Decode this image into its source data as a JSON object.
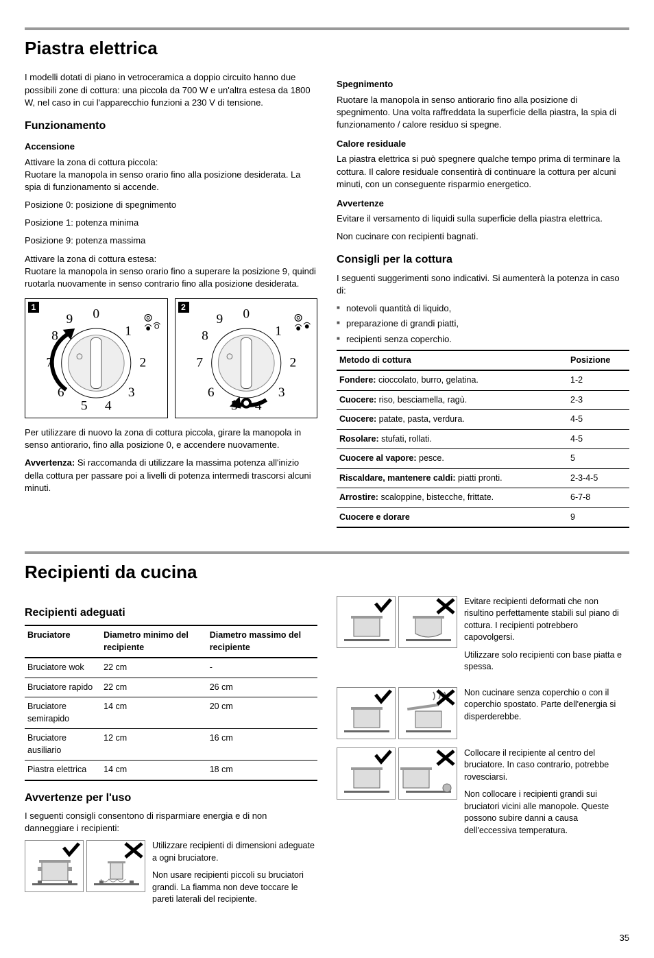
{
  "page_number": "35",
  "section1": {
    "title": "Piastra elettrica",
    "intro": "I modelli dotati di piano in vetroceramica a doppio circuito hanno due possibili zone di cottura: una piccola da 700 W e un'altra estesa da 1800 W, nel caso in cui l'apparecchio funzioni a 230 V di tensione.",
    "operation": {
      "heading": "Funzionamento",
      "turn_on_heading": "Accensione",
      "small_zone_label": "Attivare la zona di cottura piccola:",
      "small_zone_text": "Ruotare la manopola in senso orario fino alla posizione desiderata. La spia di funzionamento si accende.",
      "pos0": "Posizione 0: posizione di spegnimento",
      "pos1": "Posizione 1: potenza minima",
      "pos9": "Posizione 9: potenza massima",
      "ext_zone_label": "Attivare la zona di cottura estesa:",
      "ext_zone_text": "Ruotare la manopola in senso orario fino a superare la posizione 9, quindi ruotarla nuovamente in senso contrario fino alla posizione desiderata.",
      "after_dial": "Per utilizzare di nuovo la zona di cottura piccola, girare la manopola in senso antiorario, fino alla posizione 0, e accendere nuovamente.",
      "warning_label": "Avvertenza:",
      "warning_text": " Si raccomanda di utilizzare la massima potenza all'inizio della cottura per passare poi a livelli di potenza intermedi trascorsi alcuni minuti."
    },
    "turn_off": {
      "heading": "Spegnimento",
      "text": "Ruotare la manopola in senso antiorario fino alla posizione di spegnimento. Una volta raffreddata la superficie della piastra, la spia di funzionamento / calore residuo si spegne."
    },
    "residual": {
      "heading": "Calore residuale",
      "text": "La piastra elettrica si può spegnere qualche tempo prima di terminare la cottura. Il calore residuale consentirà di continuare la cottura per alcuni minuti, con un conseguente risparmio energetico."
    },
    "warnings": {
      "heading": "Avvertenze",
      "w1": "Evitare il versamento di liquidi sulla superficie della piastra elettrica.",
      "w2": "Non cucinare con recipienti bagnati."
    },
    "tips": {
      "heading": "Consigli per la cottura",
      "intro": "I seguenti suggerimenti sono indicativi. Si aumenterà la potenza in caso di:",
      "b1": "notevoli quantità di liquido,",
      "b2": "preparazione di grandi piatti,",
      "b3": "recipienti senza coperchio."
    },
    "cooking_table": {
      "col1": "Metodo di cottura",
      "col2": "Posizione",
      "rows": [
        {
          "m_bold": "Fondere:",
          "m_rest": " cioccolato, burro, gelatina.",
          "p": "1-2"
        },
        {
          "m_bold": "Cuocere:",
          "m_rest": " riso, besciamella, ragù.",
          "p": "2-3"
        },
        {
          "m_bold": "Cuocere:",
          "m_rest": " patate, pasta, verdura.",
          "p": "4-5"
        },
        {
          "m_bold": "Rosolare:",
          "m_rest": " stufati, rollati.",
          "p": "4-5"
        },
        {
          "m_bold": "Cuocere al vapore:",
          "m_rest": " pesce.",
          "p": "5"
        },
        {
          "m_bold": "Riscaldare, mantenere caldi:",
          "m_rest": "  piatti pronti.",
          "p": "2-3-4-5"
        },
        {
          "m_bold": "Arrostire:",
          "m_rest": " scaloppine, bistecche, frittate.",
          "p": "6-7-8"
        },
        {
          "m_bold": "Cuocere e dorare",
          "m_rest": "",
          "p": "9"
        }
      ]
    }
  },
  "section2": {
    "title": "Recipienti da cucina",
    "suitable": {
      "heading": "Recipienti adeguati",
      "table": {
        "col1": "Bruciatore",
        "col2": "Diametro minimo del recipiente",
        "col3": "Diametro massimo del recipiente",
        "rows": [
          {
            "b": "Bruciatore wok",
            "min": "22 cm",
            "max": "-"
          },
          {
            "b": "Bruciatore rapido",
            "min": "22 cm",
            "max": "26 cm"
          },
          {
            "b": "Bruciatore semirapido",
            "min": "14 cm",
            "max": "20 cm"
          },
          {
            "b": "Bruciatore ausiliario",
            "min": "12 cm",
            "max": "16 cm"
          },
          {
            "b": "Piastra elettrica",
            "min": "14 cm",
            "max": "18 cm"
          }
        ]
      }
    },
    "usage": {
      "heading": "Avvertenze per l'uso",
      "intro": "I seguenti consigli consentono di risparmiare energia e di non danneggiare i recipienti:",
      "tip1a": "Utilizzare recipienti di dimensioni adeguate a ogni bruciatore.",
      "tip1b": "Non usare recipienti piccoli su bruciatori grandi. La fiamma non deve toccare le pareti laterali del recipiente.",
      "tip2a": "Evitare recipienti deformati che non risultino perfettamente stabili sul piano di cottura. I recipienti potrebbero capovolgersi.",
      "tip2b": "Utilizzare solo recipienti con base piatta e spessa.",
      "tip3": "Non cucinare senza coperchio o con il coperchio spostato. Parte dell'energia si disperderebbe.",
      "tip4a": "Collocare il recipiente al centro del bruciatore. In caso contrario, potrebbe rovesciarsi.",
      "tip4b": "Non collocare i recipienti grandi sui bruciatori vicini alle manopole. Queste possono subire danni a causa dell'eccessiva temperatura."
    }
  },
  "dial": {
    "positions": [
      "0",
      "1",
      "2",
      "3",
      "4",
      "5",
      "6",
      "7",
      "8",
      "9"
    ]
  }
}
